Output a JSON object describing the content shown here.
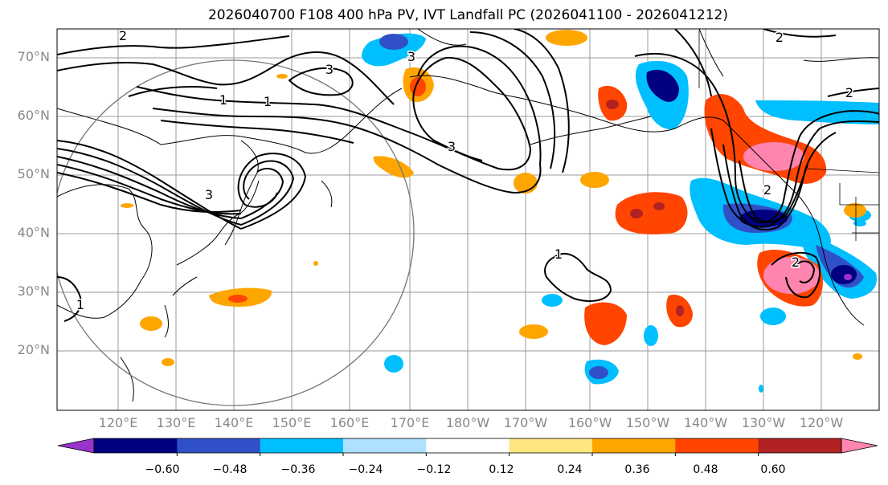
{
  "title": "2026040700 F108 400 hPa PV, IVT Landfall PC (2026041100 - 2026041212)",
  "latitude_labels": [
    "70°N",
    "60°N",
    "50°N",
    "40°N",
    "30°N",
    "20°N"
  ],
  "longitude_labels": [
    "120°E",
    "130°E",
    "140°E",
    "150°E",
    "160°E",
    "170°E",
    "180°W",
    "170°W",
    "160°W",
    "150°W",
    "140°W",
    "130°W",
    "120°W"
  ],
  "contour_labels": [
    "1",
    "2",
    "3"
  ],
  "colorbar": {
    "tick_labels": [
      "−0.60",
      "−0.48",
      "−0.36",
      "−0.24",
      "−0.12",
      "0.12",
      "0.24",
      "0.36",
      "0.48",
      "0.60"
    ],
    "colors": [
      "#9933cc",
      "#000080",
      "#3050c8",
      "#00bfff",
      "#b0e0ff",
      "#ffffff",
      "#ffe680",
      "#ffa500",
      "#ff4500",
      "#b22222",
      "#ff85b0"
    ]
  },
  "colors": {
    "grid": "#999999",
    "label_gray": "#888888",
    "contour": "#000000"
  }
}
